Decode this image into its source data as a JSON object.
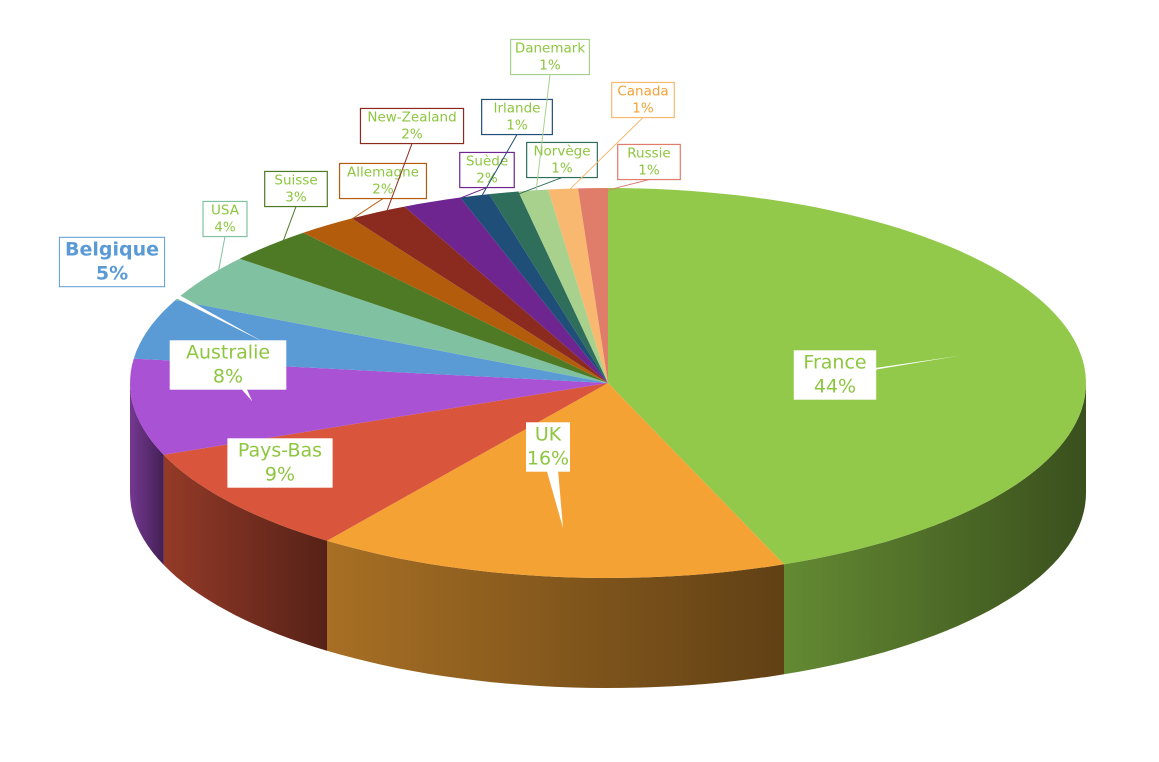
{
  "chart_data": {
    "type": "pie3d",
    "categories": [
      "France",
      "UK",
      "Pays-Bas",
      "Australie",
      "Belgique",
      "USA",
      "Suisse",
      "Allemagne",
      "New-Zealand",
      "Suède",
      "Irlande",
      "Norvège",
      "Danemark",
      "Canada",
      "Russie"
    ],
    "values": [
      44,
      16,
      9,
      8,
      5,
      4,
      3,
      2,
      2,
      2,
      1,
      1,
      1,
      1,
      1
    ],
    "value_labels": [
      "44%",
      "16%",
      "9%",
      "8%",
      "5%",
      "4%",
      "3%",
      "2%",
      "2%",
      "2%",
      "1%",
      "1%",
      "1%",
      "1%",
      "1%"
    ],
    "colors": [
      "#92c94a",
      "#f5a235",
      "#d9553b",
      "#a952d4",
      "#5b9bd5",
      "#7fc1a0",
      "#4e7a25",
      "#b35d0c",
      "#8b2a1f",
      "#6e2590",
      "#1f4e79",
      "#2e6e5a",
      "#a9d18e",
      "#f8b870",
      "#e07c6a"
    ]
  }
}
